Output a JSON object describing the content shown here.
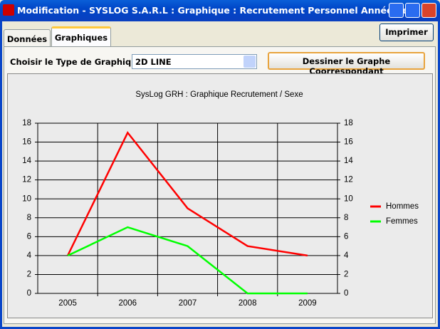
{
  "window": {
    "title": "Modification - SYSLOG S.A.R.L : Graphique : Recrutement Personnel  Année/Sexe"
  },
  "tabs": [
    "Données",
    "Graphiques"
  ],
  "print_button": "Imprimer",
  "chart_type_label": "Choisir le Type de Graphique :",
  "chart_type_value": "2D LINE",
  "draw_button": "Dessiner le Graphe Coorrespondant",
  "chart_data": {
    "type": "line",
    "title": "SysLog GRH : Graphique Recrutement / Sexe",
    "categories": [
      "2005",
      "2006",
      "2007",
      "2008",
      "2009"
    ],
    "series": [
      {
        "name": "Hommes",
        "color": "#ff0000",
        "values": [
          4,
          17,
          9,
          5,
          4
        ]
      },
      {
        "name": "Femmes",
        "color": "#00ff00",
        "values": [
          4,
          7,
          5,
          0,
          0
        ]
      }
    ],
    "ylim": [
      0,
      18
    ],
    "yticks": [
      0,
      2,
      4,
      6,
      8,
      10,
      12,
      14,
      16,
      18
    ],
    "grid": true,
    "legend": "right"
  }
}
